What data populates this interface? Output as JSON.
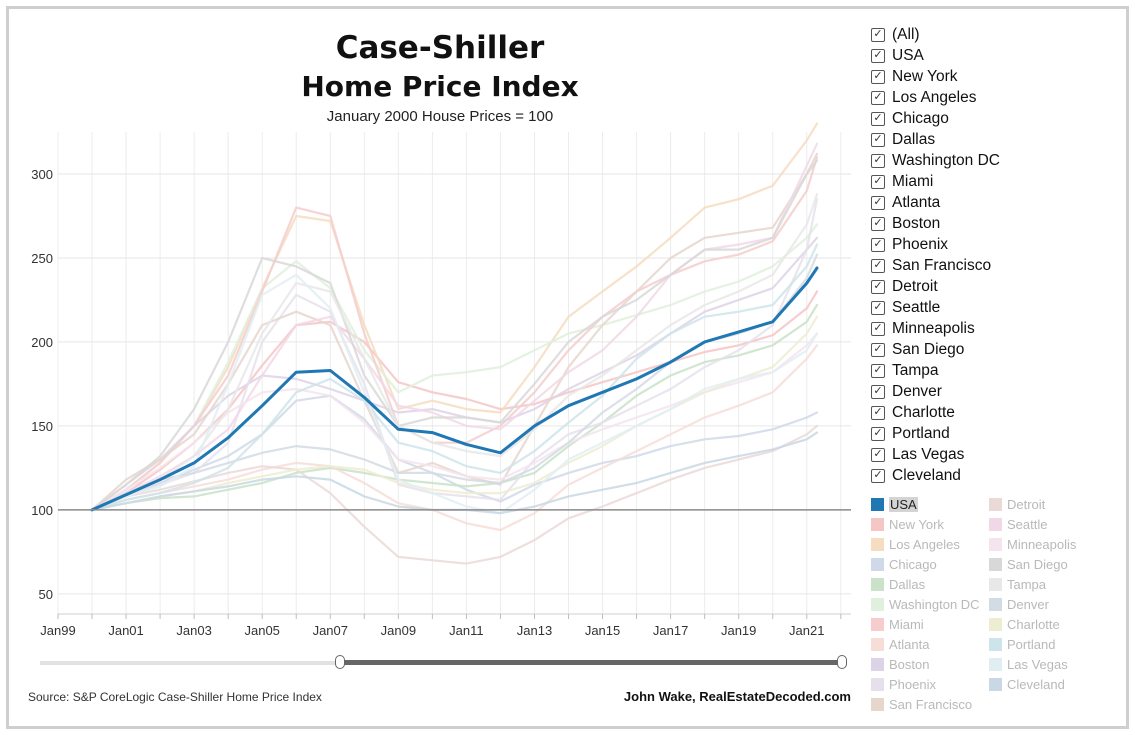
{
  "title_line1": "Case-Shiller",
  "title_line2": "Home Price Index",
  "subtitle": "January 2000 House Prices = 100",
  "source": "Source: S&P CoreLogic Case-Shiller Home Price Index",
  "credit": "John Wake, RealEstateDecoded.com",
  "filter": {
    "items": [
      "(All)",
      "USA",
      "New York",
      "Los Angeles",
      "Chicago",
      "Dallas",
      "Washington DC",
      "Miami",
      "Atlanta",
      "Boston",
      "Phoenix",
      "San Francisco",
      "Detroit",
      "Seattle",
      "Minneapolis",
      "San Diego",
      "Tampa",
      "Denver",
      "Charlotte",
      "Portland",
      "Las Vegas",
      "Cleveland"
    ],
    "check_mark": "✓"
  },
  "legend": {
    "active": "USA",
    "items": [
      {
        "name": "USA",
        "color": "#1f77b4"
      },
      {
        "name": "New York",
        "color": "#f4c6c4"
      },
      {
        "name": "Los Angeles",
        "color": "#f6dcc0"
      },
      {
        "name": "Chicago",
        "color": "#cfd9e8"
      },
      {
        "name": "Dallas",
        "color": "#c9e2c8"
      },
      {
        "name": "Washington DC",
        "color": "#dff0dc"
      },
      {
        "name": "Miami",
        "color": "#f6cccc"
      },
      {
        "name": "Atlanta",
        "color": "#f7ddd8"
      },
      {
        "name": "Boston",
        "color": "#ddd3e6"
      },
      {
        "name": "Phoenix",
        "color": "#e6e0ec"
      },
      {
        "name": "San Francisco",
        "color": "#e6d6cc"
      },
      {
        "name": "Detroit",
        "color": "#ebd9d8"
      },
      {
        "name": "Seattle",
        "color": "#f1d8e6"
      },
      {
        "name": "Minneapolis",
        "color": "#f4e4ee"
      },
      {
        "name": "San Diego",
        "color": "#d8d8d8"
      },
      {
        "name": "Tampa",
        "color": "#e8e8e8"
      },
      {
        "name": "Denver",
        "color": "#d3dbe3"
      },
      {
        "name": "Charlotte",
        "color": "#ededd2"
      },
      {
        "name": "Portland",
        "color": "#cde4ea"
      },
      {
        "name": "Las Vegas",
        "color": "#e0eef3"
      },
      {
        "name": "Cleveland",
        "color": "#c9d8e4"
      }
    ]
  },
  "chart_data": {
    "type": "line",
    "title": "Case-Shiller Home Price Index",
    "subtitle": "January 2000 House Prices = 100",
    "xlabel": "",
    "ylabel": "",
    "x_ticks": [
      "Jan99",
      "Jan01",
      "Jan03",
      "Jan05",
      "Jan07",
      "Jan09",
      "Jan11",
      "Jan13",
      "Jan15",
      "Jan17",
      "Jan19",
      "Jan21"
    ],
    "y_ticks": [
      50,
      100,
      150,
      200,
      250,
      300
    ],
    "ylim": [
      38,
      325
    ],
    "xlim": [
      1999,
      2022.3
    ],
    "baseline": 100,
    "grid": true,
    "x": [
      2000,
      2001,
      2002,
      2003,
      2004,
      2005,
      2006,
      2007,
      2008,
      2009,
      2010,
      2011,
      2012,
      2013,
      2014,
      2015,
      2016,
      2017,
      2018,
      2019,
      2020,
      2021,
      2021.3
    ],
    "series": [
      {
        "name": "USA",
        "values": [
          100,
          109,
          118,
          128,
          143,
          162,
          182,
          183,
          167,
          148,
          146,
          139,
          134,
          150,
          162,
          170,
          178,
          188,
          200,
          206,
          212,
          235,
          244
        ]
      },
      {
        "name": "New York",
        "values": [
          100,
          110,
          124,
          140,
          160,
          186,
          210,
          212,
          200,
          176,
          170,
          166,
          160,
          163,
          170,
          176,
          182,
          188,
          194,
          198,
          204,
          220,
          230
        ]
      },
      {
        "name": "Los Angeles",
        "values": [
          100,
          112,
          128,
          150,
          185,
          232,
          275,
          272,
          210,
          160,
          165,
          160,
          158,
          185,
          215,
          230,
          245,
          262,
          280,
          285,
          293,
          320,
          330
        ]
      },
      {
        "name": "Chicago",
        "values": [
          100,
          108,
          116,
          124,
          132,
          145,
          165,
          168,
          154,
          130,
          122,
          112,
          105,
          115,
          122,
          128,
          132,
          138,
          142,
          144,
          148,
          155,
          158
        ]
      },
      {
        "name": "Dallas",
        "values": [
          100,
          104,
          107,
          108,
          112,
          116,
          122,
          125,
          122,
          118,
          116,
          114,
          116,
          122,
          138,
          152,
          168,
          180,
          188,
          192,
          198,
          212,
          222
        ]
      },
      {
        "name": "Washington DC",
        "values": [
          100,
          112,
          128,
          150,
          188,
          232,
          248,
          232,
          195,
          170,
          180,
          182,
          185,
          195,
          205,
          210,
          216,
          222,
          230,
          236,
          245,
          262,
          270
        ]
      },
      {
        "name": "Miami",
        "values": [
          100,
          112,
          128,
          150,
          180,
          230,
          280,
          275,
          205,
          150,
          140,
          140,
          150,
          170,
          195,
          215,
          230,
          240,
          248,
          252,
          260,
          290,
          310
        ]
      },
      {
        "name": "Atlanta",
        "values": [
          100,
          106,
          110,
          114,
          118,
          124,
          128,
          126,
          116,
          104,
          100,
          92,
          88,
          98,
          115,
          125,
          135,
          145,
          155,
          162,
          170,
          190,
          198
        ]
      },
      {
        "name": "Boston",
        "values": [
          100,
          115,
          130,
          150,
          168,
          180,
          178,
          172,
          165,
          158,
          160,
          155,
          152,
          160,
          172,
          182,
          192,
          205,
          218,
          225,
          232,
          255,
          262
        ]
      },
      {
        "name": "Phoenix",
        "values": [
          100,
          108,
          115,
          122,
          140,
          200,
          228,
          218,
          175,
          115,
          110,
          108,
          106,
          130,
          145,
          152,
          162,
          172,
          185,
          195,
          210,
          255,
          285
        ]
      },
      {
        "name": "San Francisco",
        "values": [
          100,
          118,
          130,
          145,
          175,
          210,
          218,
          210,
          165,
          122,
          128,
          120,
          115,
          150,
          185,
          210,
          230,
          250,
          262,
          265,
          268,
          300,
          312
        ]
      },
      {
        "name": "Detroit",
        "values": [
          100,
          108,
          112,
          117,
          122,
          126,
          124,
          110,
          90,
          72,
          70,
          68,
          72,
          82,
          95,
          102,
          110,
          118,
          125,
          130,
          135,
          145,
          150
        ]
      },
      {
        "name": "Seattle",
        "values": [
          100,
          110,
          120,
          132,
          148,
          180,
          210,
          215,
          190,
          162,
          158,
          150,
          148,
          165,
          182,
          195,
          215,
          240,
          255,
          258,
          262,
          305,
          318
        ]
      },
      {
        "name": "Minneapolis",
        "values": [
          100,
          112,
          125,
          140,
          158,
          170,
          172,
          168,
          152,
          130,
          126,
          120,
          118,
          128,
          140,
          148,
          155,
          162,
          170,
          176,
          182,
          198,
          205
        ]
      },
      {
        "name": "San Diego",
        "values": [
          100,
          115,
          132,
          160,
          200,
          250,
          245,
          235,
          180,
          150,
          155,
          155,
          152,
          175,
          200,
          215,
          225,
          240,
          255,
          255,
          262,
          300,
          308
        ]
      },
      {
        "name": "Tampa",
        "values": [
          100,
          108,
          118,
          132,
          160,
          205,
          235,
          230,
          190,
          150,
          140,
          135,
          132,
          148,
          168,
          180,
          195,
          210,
          222,
          230,
          240,
          270,
          288
        ]
      },
      {
        "name": "Denver",
        "values": [
          100,
          110,
          118,
          122,
          128,
          134,
          138,
          136,
          130,
          122,
          122,
          118,
          116,
          125,
          140,
          158,
          172,
          188,
          200,
          205,
          212,
          238,
          252
        ]
      },
      {
        "name": "Charlotte",
        "values": [
          100,
          104,
          108,
          111,
          116,
          120,
          124,
          126,
          124,
          116,
          112,
          110,
          110,
          116,
          128,
          138,
          150,
          160,
          170,
          178,
          185,
          205,
          215
        ]
      },
      {
        "name": "Portland",
        "values": [
          100,
          106,
          110,
          116,
          125,
          145,
          170,
          178,
          165,
          140,
          135,
          126,
          122,
          135,
          152,
          168,
          190,
          205,
          215,
          218,
          222,
          245,
          258
        ]
      },
      {
        "name": "Las Vegas",
        "values": [
          100,
          108,
          114,
          126,
          175,
          228,
          240,
          220,
          170,
          118,
          110,
          102,
          98,
          112,
          130,
          140,
          150,
          160,
          172,
          178,
          182,
          195,
          205
        ]
      },
      {
        "name": "Cleveland",
        "values": [
          100,
          104,
          108,
          111,
          114,
          118,
          120,
          118,
          108,
          102,
          100,
          100,
          98,
          102,
          108,
          112,
          116,
          122,
          128,
          132,
          136,
          142,
          146
        ]
      }
    ]
  }
}
